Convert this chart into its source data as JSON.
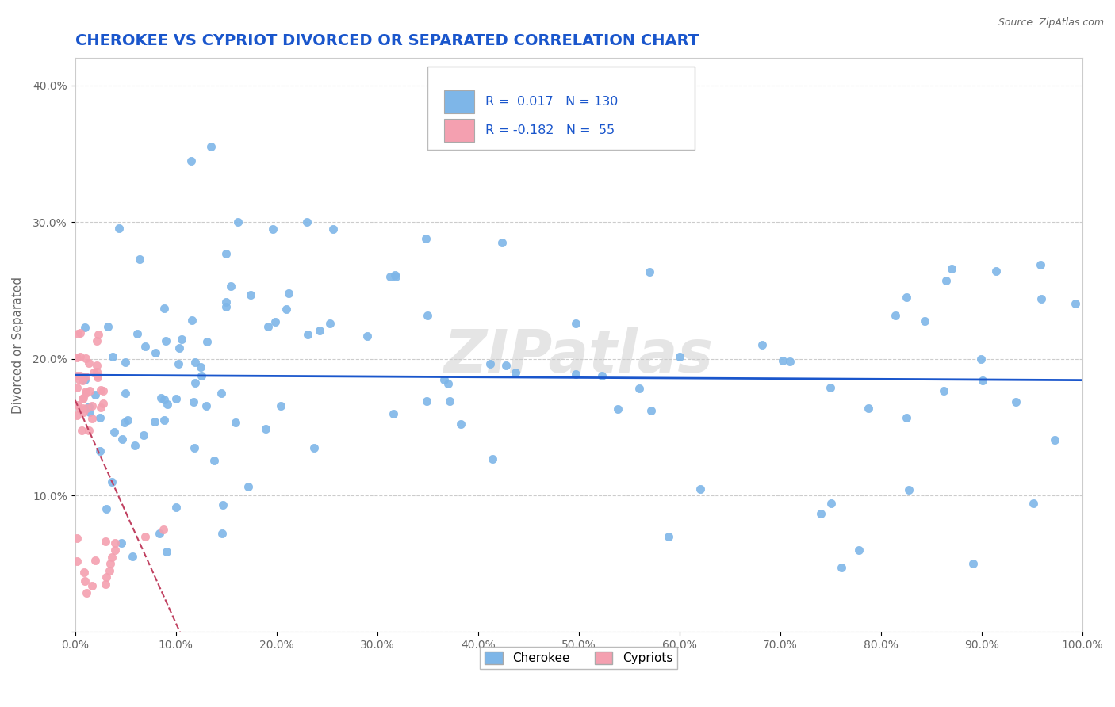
{
  "title": "CHEROKEE VS CYPRIOT DIVORCED OR SEPARATED CORRELATION CHART",
  "source_text": "Source: ZipAtlas.com",
  "ylabel": "Divorced or Separated",
  "xlim": [
    0.0,
    1.0
  ],
  "ylim": [
    0.0,
    0.42
  ],
  "xticks": [
    0.0,
    0.1,
    0.2,
    0.3,
    0.4,
    0.5,
    0.6,
    0.7,
    0.8,
    0.9,
    1.0
  ],
  "xticklabels": [
    "0.0%",
    "10.0%",
    "20.0%",
    "30.0%",
    "40.0%",
    "50.0%",
    "60.0%",
    "70.0%",
    "80.0%",
    "90.0%",
    "100.0%"
  ],
  "yticks": [
    0.0,
    0.1,
    0.2,
    0.3,
    0.4
  ],
  "yticklabels": [
    "",
    "10.0%",
    "20.0%",
    "30.0%",
    "40.0%"
  ],
  "cherokee_color": "#7EB6E8",
  "cypriot_color": "#F4A0B0",
  "cherokee_R": 0.017,
  "cherokee_N": 130,
  "cypriot_R": -0.182,
  "cypriot_N": 55,
  "trend_line_cherokee_color": "#1A56CC",
  "trend_line_cypriot_color": "#C04060",
  "watermark": "ZIPatlas",
  "legend_cherokee": "Cherokee",
  "legend_cypriot": "Cypriots",
  "background_color": "#FFFFFF",
  "grid_color": "#CCCCCC",
  "title_color": "#1A56CC",
  "legend_text_color": "#1A56CC",
  "axis_label_color": "#666666",
  "tick_label_color": "#666666"
}
